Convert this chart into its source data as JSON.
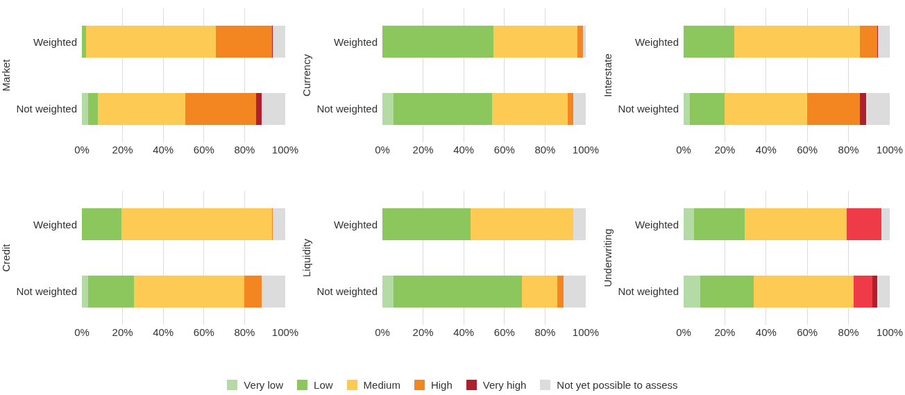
{
  "chart_data": [
    {
      "type": "bar",
      "orientation": "horizontal",
      "stacked": true,
      "ylabel": "Market",
      "categories": [
        "Weighted",
        "Not weighted"
      ],
      "xlim": [
        0,
        100
      ],
      "xticks": [
        {
          "value": 0,
          "label": "0%"
        },
        {
          "value": 20,
          "label": "20%"
        },
        {
          "value": 40,
          "label": "40%"
        },
        {
          "value": 60,
          "label": "60%"
        },
        {
          "value": 80,
          "label": "80%"
        },
        {
          "value": 100,
          "label": "100%"
        }
      ],
      "grid": "x",
      "legend": "bottom",
      "series": [
        {
          "name": "Very low",
          "color": "#b5dba4",
          "values": [
            0,
            3
          ]
        },
        {
          "name": "Low",
          "color": "#8bc75d",
          "values": [
            2,
            5
          ]
        },
        {
          "name": "Medium",
          "color": "#fdcb53",
          "values": [
            64,
            43
          ]
        },
        {
          "name": "High",
          "color": "#f48622",
          "values": [
            27.5,
            34.5
          ]
        },
        {
          "name": "Very high",
          "color": "#b01f2e",
          "values": [
            0.5,
            3
          ]
        },
        {
          "name": "Not yet possible to assess",
          "color": "#dcdcdd",
          "values": [
            6,
            11.5
          ]
        }
      ]
    },
    {
      "type": "bar",
      "orientation": "horizontal",
      "stacked": true,
      "ylabel": "Currency",
      "categories": [
        "Weighted",
        "Not weighted"
      ],
      "xlim": [
        0,
        100
      ],
      "xticks": [
        {
          "value": 0,
          "label": "0%"
        },
        {
          "value": 20,
          "label": "20%"
        },
        {
          "value": 40,
          "label": "40%"
        },
        {
          "value": 60,
          "label": "60%"
        },
        {
          "value": 80,
          "label": "80%"
        },
        {
          "value": 100,
          "label": "100%"
        }
      ],
      "grid": "x",
      "series": [
        {
          "color": "#b5dba4",
          "values": [
            0,
            5.5
          ]
        },
        {
          "color": "#8bc75d",
          "values": [
            54.5,
            48.5
          ]
        },
        {
          "color": "#fdcb53",
          "values": [
            41.5,
            37
          ]
        },
        {
          "color": "#f48622",
          "values": [
            2.5,
            3
          ]
        },
        {
          "color": "#b01f2e",
          "values": [
            0,
            0
          ]
        },
        {
          "color": "#dcdcdd",
          "values": [
            1.5,
            6
          ]
        }
      ]
    },
    {
      "type": "bar",
      "orientation": "horizontal",
      "stacked": true,
      "ylabel": "Interstate",
      "categories": [
        "Weighted",
        "Not weighted"
      ],
      "xlim": [
        0,
        100
      ],
      "xticks": [
        {
          "value": 0,
          "label": "0%"
        },
        {
          "value": 20,
          "label": "20%"
        },
        {
          "value": 40,
          "label": "40%"
        },
        {
          "value": 60,
          "label": "60%"
        },
        {
          "value": 80,
          "label": "80%"
        },
        {
          "value": 100,
          "label": "100%"
        }
      ],
      "grid": "x",
      "series": [
        {
          "color": "#b5dba4",
          "values": [
            0,
            3
          ]
        },
        {
          "color": "#8bc75d",
          "values": [
            24.5,
            17
          ]
        },
        {
          "color": "#fdcb53",
          "values": [
            61,
            40
          ]
        },
        {
          "color": "#f48622",
          "values": [
            8.5,
            25.5
          ]
        },
        {
          "color": "#b01f2e",
          "values": [
            0.3,
            3
          ]
        },
        {
          "color": "#dcdcdd",
          "values": [
            5.7,
            11.5
          ]
        }
      ]
    },
    {
      "type": "bar",
      "orientation": "horizontal",
      "stacked": true,
      "ylabel": "Credit",
      "categories": [
        "Weighted",
        "Not weighted"
      ],
      "xlim": [
        0,
        100
      ],
      "xticks": [
        {
          "value": 0,
          "label": "0%"
        },
        {
          "value": 20,
          "label": "20%"
        },
        {
          "value": 40,
          "label": "40%"
        },
        {
          "value": 60,
          "label": "60%"
        },
        {
          "value": 80,
          "label": "80%"
        },
        {
          "value": 100,
          "label": "100%"
        }
      ],
      "grid": "x",
      "series": [
        {
          "color": "#b5dba4",
          "values": [
            0,
            3
          ]
        },
        {
          "color": "#8bc75d",
          "values": [
            19.5,
            22.5
          ]
        },
        {
          "color": "#fdcb53",
          "values": [
            74,
            54.5
          ]
        },
        {
          "color": "#f48622",
          "values": [
            0.5,
            8.5
          ]
        },
        {
          "color": "#b01f2e",
          "values": [
            0,
            0
          ]
        },
        {
          "color": "#dcdcdd",
          "values": [
            6,
            11.5
          ]
        }
      ]
    },
    {
      "type": "bar",
      "orientation": "horizontal",
      "stacked": true,
      "ylabel": "Liquidity",
      "categories": [
        "Weighted",
        "Not weighted"
      ],
      "xlim": [
        0,
        100
      ],
      "xticks": [
        {
          "value": 0,
          "label": "0%"
        },
        {
          "value": 20,
          "label": "20%"
        },
        {
          "value": 40,
          "label": "40%"
        },
        {
          "value": 60,
          "label": "60%"
        },
        {
          "value": 80,
          "label": "80%"
        },
        {
          "value": 100,
          "label": "100%"
        }
      ],
      "grid": "x",
      "series": [
        {
          "color": "#b5dba4",
          "values": [
            0,
            5.5
          ]
        },
        {
          "color": "#8bc75d",
          "values": [
            43.5,
            63
          ]
        },
        {
          "color": "#fdcb53",
          "values": [
            50.5,
            17.5
          ]
        },
        {
          "color": "#f48622",
          "values": [
            0,
            3
          ]
        },
        {
          "color": "#b01f2e",
          "values": [
            0,
            0
          ]
        },
        {
          "color": "#dcdcdd",
          "values": [
            6,
            11
          ]
        }
      ]
    },
    {
      "type": "bar",
      "orientation": "horizontal",
      "stacked": true,
      "ylabel": "Underwriting",
      "categories": [
        "Weighted",
        "Not weighted"
      ],
      "xlim": [
        0,
        100
      ],
      "xticks": [
        {
          "value": 0,
          "label": "0%"
        },
        {
          "value": 20,
          "label": "20%"
        },
        {
          "value": 40,
          "label": "40%"
        },
        {
          "value": 60,
          "label": "60%"
        },
        {
          "value": 80,
          "label": "80%"
        },
        {
          "value": 100,
          "label": "100%"
        }
      ],
      "grid": "x",
      "series": [
        {
          "color": "#b5dba4",
          "values": [
            5,
            8
          ]
        },
        {
          "color": "#8bc75d",
          "values": [
            24.5,
            26
          ]
        },
        {
          "color": "#fdcb53",
          "values": [
            49.5,
            48.5
          ]
        },
        {
          "color": "#ef3b47",
          "values": [
            17,
            9
          ]
        },
        {
          "color": "#b01f2e",
          "values": [
            0,
            2.5
          ]
        },
        {
          "color": "#dcdcdd",
          "values": [
            4,
            6
          ]
        }
      ]
    }
  ]
}
